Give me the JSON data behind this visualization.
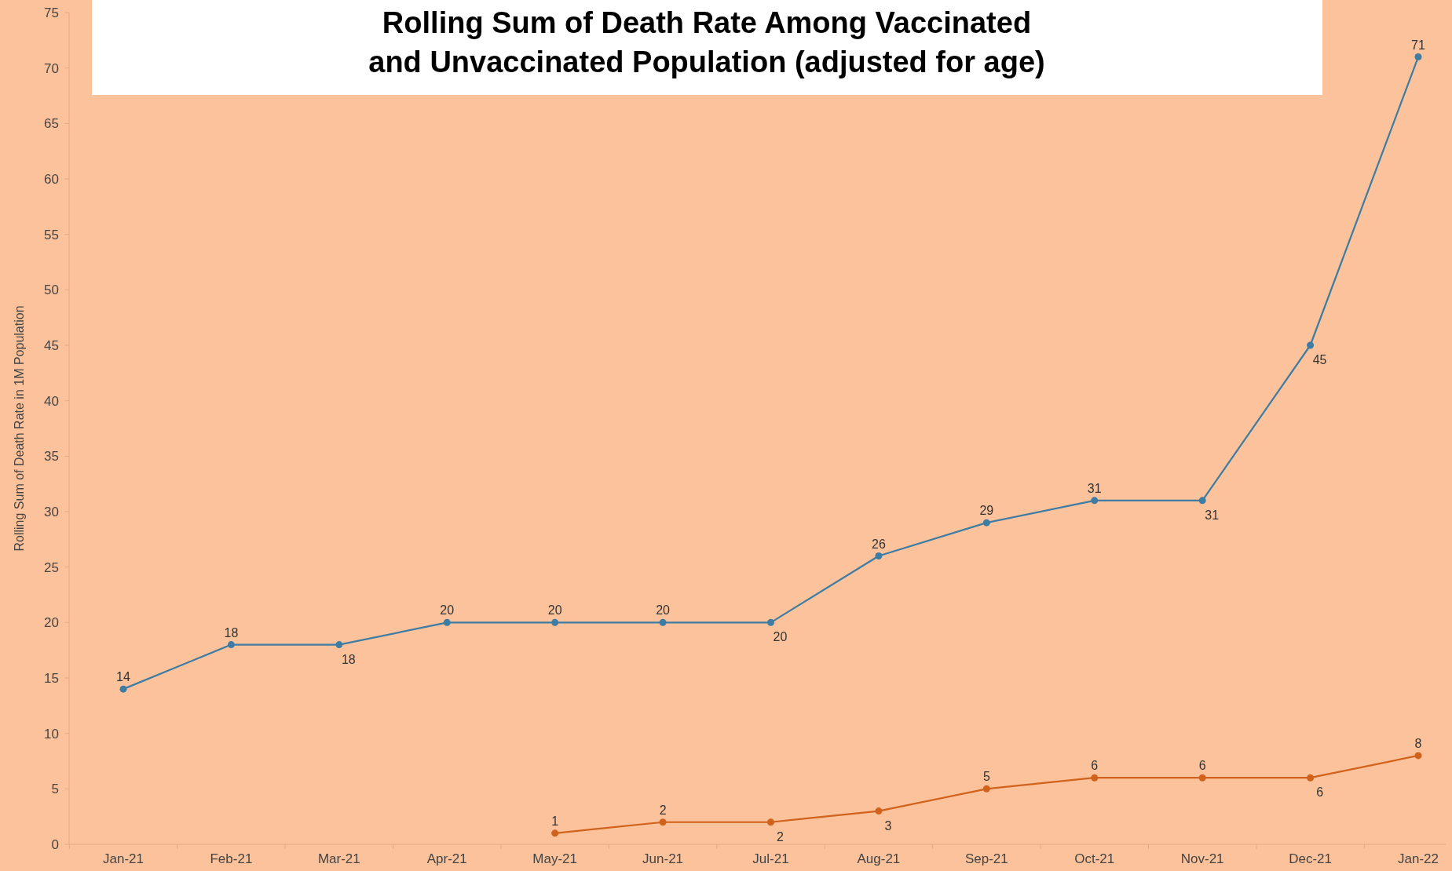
{
  "chart_data": {
    "type": "line",
    "title": "Rolling Sum of Death Rate Among Vaccinated\nand Unvaccinated Population (adjusted for age)",
    "ylabel": "Rolling Sum of Death Rate in 1M Population",
    "categories": [
      "Jan-21",
      "Feb-21",
      "Mar-21",
      "Apr-21",
      "May-21",
      "Jun-21",
      "Jul-21",
      "Aug-21",
      "Sep-21",
      "Oct-21",
      "Nov-21",
      "Dec-21",
      "Jan-22"
    ],
    "series": [
      {
        "color": "#3d7ca3",
        "values": [
          14,
          18,
          18,
          20,
          20,
          20,
          20,
          26,
          29,
          31,
          31,
          45,
          71
        ]
      },
      {
        "color": "#d0621c",
        "values": [
          null,
          null,
          null,
          null,
          1,
          2,
          2,
          3,
          5,
          6,
          6,
          6,
          8
        ]
      }
    ],
    "ylim": [
      0,
      75
    ],
    "yticks": [
      0,
      5,
      10,
      15,
      20,
      25,
      30,
      35,
      40,
      45,
      50,
      55,
      60,
      65,
      70,
      75
    ],
    "grid": false,
    "marker": "circle",
    "line_style": "solid",
    "data_labels": true
  }
}
